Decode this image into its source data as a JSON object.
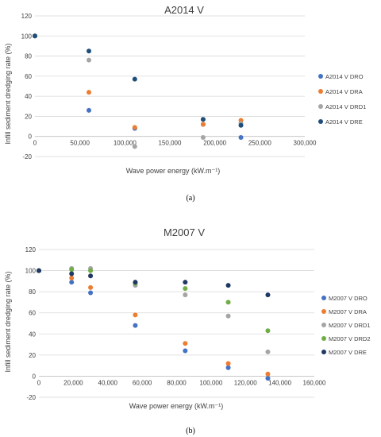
{
  "chart_data": [
    {
      "type": "scatter",
      "title": "A2014 V",
      "xlabel": "Wave power energy (kW.m⁻¹)",
      "ylabel": "Infill sediment dredging  rate (%)",
      "xlim": [
        0,
        300000
      ],
      "ylim": [
        -20,
        120
      ],
      "xticks": [
        0,
        50000,
        100000,
        150000,
        200000,
        250000,
        300000
      ],
      "xtick_labels": [
        "0",
        "50,000",
        "100,000",
        "150,000",
        "200,000",
        "250,000",
        "300,000"
      ],
      "yticks": [
        -20,
        0,
        20,
        40,
        60,
        80,
        100,
        120
      ],
      "ytick_labels": [
        "-20",
        "0",
        "20",
        "40",
        "60",
        "80",
        "100",
        "120"
      ],
      "grid": "horizontal",
      "legend_position": "right",
      "caption": "(a)",
      "series": [
        {
          "name": "A2014 V DRO",
          "color": "#4472C4",
          "x": [
            0,
            60000,
            111000,
            187000,
            229000
          ],
          "y": [
            100,
            26,
            8,
            12,
            -1
          ]
        },
        {
          "name": "A2014 V DRA",
          "color": "#ED7D31",
          "x": [
            0,
            60000,
            111000,
            187000,
            229000
          ],
          "y": [
            100,
            44,
            9,
            12,
            16
          ]
        },
        {
          "name": "A2014 V DRD1",
          "color": "#A5A5A5",
          "x": [
            0,
            60000,
            111000,
            187000,
            229000
          ],
          "y": [
            100,
            76,
            -10,
            -1,
            13
          ]
        },
        {
          "name": "A2014 V DRE",
          "color": "#1F4E79",
          "x": [
            0,
            60000,
            111000,
            187000,
            229000
          ],
          "y": [
            100,
            85,
            57,
            17,
            11
          ]
        }
      ]
    },
    {
      "type": "scatter",
      "title": "M2007 V",
      "xlabel": "Wave power energy (kW.m⁻¹)",
      "ylabel": "Infill sediment dredging rate (%)",
      "xlim": [
        0,
        160000
      ],
      "ylim": [
        -20,
        120
      ],
      "xticks": [
        0,
        20000,
        40000,
        60000,
        80000,
        100000,
        120000,
        140000,
        160000
      ],
      "xtick_labels": [
        "0",
        "20,000",
        "40,000",
        "60,000",
        "80,000",
        "100,000",
        "120,000",
        "140,000",
        "160,000"
      ],
      "yticks": [
        -20,
        0,
        20,
        40,
        60,
        80,
        100,
        120
      ],
      "ytick_labels": [
        "-20",
        "0",
        "20",
        "40",
        "60",
        "80",
        "100",
        "120"
      ],
      "grid": "horizontal",
      "legend_position": "right",
      "caption": "(b)",
      "series": [
        {
          "name": "M2007 V DRO",
          "color": "#4472C4",
          "x": [
            0,
            19000,
            30000,
            56000,
            85000,
            110000,
            133000
          ],
          "y": [
            100,
            89,
            79,
            48,
            24,
            8,
            -2
          ]
        },
        {
          "name": "M2007 V DRA",
          "color": "#ED7D31",
          "x": [
            0,
            19000,
            30000,
            56000,
            85000,
            110000,
            133000
          ],
          "y": [
            100,
            93,
            84,
            58,
            31,
            12,
            2
          ]
        },
        {
          "name": "M2007 V DRD1",
          "color": "#A5A5A5",
          "x": [
            0,
            19000,
            30000,
            56000,
            85000,
            110000,
            133000
          ],
          "y": [
            100,
            102,
            102,
            86,
            77,
            57,
            23
          ]
        },
        {
          "name": "M2007 V DRD2",
          "color": "#70AD47",
          "x": [
            0,
            19000,
            30000,
            56000,
            85000,
            110000,
            133000
          ],
          "y": [
            100,
            101,
            100,
            88,
            83,
            70,
            43
          ]
        },
        {
          "name": "M2007 V DRE",
          "color": "#1F3864",
          "x": [
            0,
            19000,
            30000,
            56000,
            85000,
            110000,
            133000
          ],
          "y": [
            100,
            97,
            95,
            89,
            89,
            86,
            77
          ]
        }
      ]
    }
  ]
}
